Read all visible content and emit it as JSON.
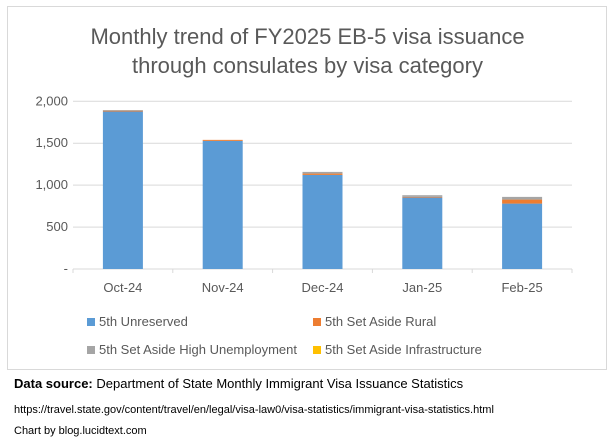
{
  "chart_data": {
    "type": "bar",
    "stacked": true,
    "title": "Monthly trend of FY2025 EB-5 visa issuance through consulates by visa category",
    "title_lines": [
      "Monthly trend of FY2025 EB-5 visa issuance",
      "through consulates by visa category"
    ],
    "categories": [
      "Oct-24",
      "Nov-24",
      "Dec-24",
      "Jan-25",
      "Feb-25"
    ],
    "series": [
      {
        "name": "5th Unreserved",
        "color": "#5b9bd5",
        "values": [
          1878,
          1528,
          1122,
          852,
          780
        ]
      },
      {
        "name": "5th Set Aside Rural",
        "color": "#ed7d31",
        "values": [
          10,
          12,
          16,
          8,
          48
        ]
      },
      {
        "name": "5th Set Aside High Unemployment",
        "color": "#a5a5a5",
        "values": [
          8,
          0,
          20,
          20,
          32
        ]
      },
      {
        "name": "5th Set Aside Infrastructure",
        "color": "#ffc000",
        "values": [
          0,
          0,
          0,
          0,
          0
        ]
      }
    ],
    "ylim": [
      0,
      2000
    ],
    "yticks": [
      0,
      500,
      1000,
      1500,
      2000
    ],
    "ytick_labels": [
      "-",
      "500",
      "1,000",
      "1,500",
      "2,000"
    ],
    "grid": true,
    "legend_position": "bottom"
  },
  "footer": {
    "source_label": "Data source:",
    "source_text": " Department of State Monthly Immigrant Visa Issuance Statistics",
    "url": "https://travel.state.gov/content/travel/en/legal/visa-law0/visa-statistics/immigrant-visa-statistics.html",
    "credit": "Chart by blog.lucidtext.com"
  }
}
